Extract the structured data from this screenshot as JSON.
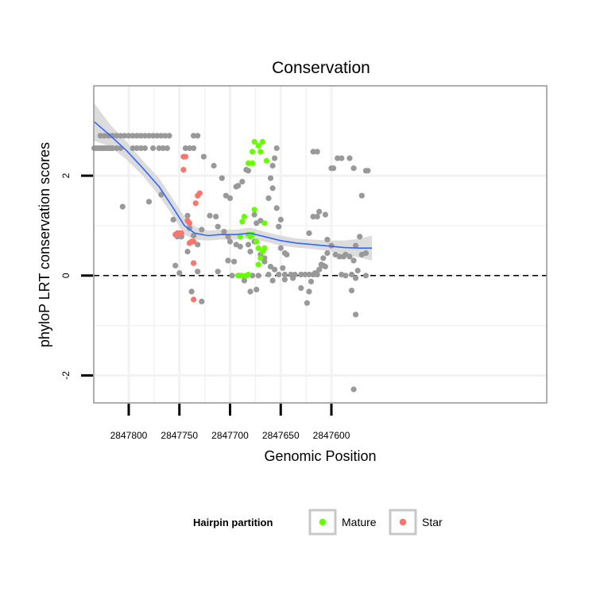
{
  "chart_data": {
    "type": "scatter",
    "title": "Conservation",
    "xlabel": "Genomic Position",
    "ylabel": "phyloP LRT conservation scores",
    "x_reversed": true,
    "xlim": [
      2847387.5,
      2847834.5
    ],
    "ylim": [
      -2.55,
      3.8
    ],
    "x_ticks": [
      2847600,
      2847650,
      2847700,
      2847750,
      2847800
    ],
    "x_tick_labels": [
      "2847600",
      "2847650",
      "2847700",
      "2847750",
      "2847800"
    ],
    "y_ticks": [
      -2,
      0,
      2
    ],
    "y_tick_labels": [
      "-2",
      "0",
      "2"
    ],
    "reference_line": {
      "y": 0,
      "style": "dashed"
    },
    "colors": {
      "background": "#ffffff",
      "panel_border": "#8c8c8c",
      "grid": "#f2f2f2",
      "other": "#999999",
      "mature": "#66ff00",
      "star": "#f8766d",
      "smooth_line": "#3366ff",
      "smooth_band": "#d6d6d6"
    },
    "legend": {
      "title": "Hairpin partition",
      "position": "bottom",
      "entries": [
        {
          "label": "Mature",
          "color": "#66ff00"
        },
        {
          "label": "Star",
          "color": "#f8766d"
        }
      ]
    },
    "series": [
      {
        "name": "Other",
        "color": "#999999",
        "points": [
          [
            2847834,
            2.55
          ],
          [
            2847832,
            2.55
          ],
          [
            2847830,
            2.55
          ],
          [
            2847828,
            2.55
          ],
          [
            2847826,
            2.55
          ],
          [
            2847824,
            2.55
          ],
          [
            2847822,
            2.55
          ],
          [
            2847820,
            2.55
          ],
          [
            2847818,
            2.55
          ],
          [
            2847816,
            2.55
          ],
          [
            2847812,
            2.55
          ],
          [
            2847808,
            2.55
          ],
          [
            2847796,
            2.55
          ],
          [
            2847792,
            2.55
          ],
          [
            2847788,
            2.55
          ],
          [
            2847784,
            2.55
          ],
          [
            2847776,
            2.55
          ],
          [
            2847770,
            2.55
          ],
          [
            2847766,
            2.55
          ],
          [
            2847762,
            2.55
          ],
          [
            2847744,
            2.55
          ],
          [
            2847740,
            2.55
          ],
          [
            2847828,
            2.8
          ],
          [
            2847824,
            2.8
          ],
          [
            2847820,
            2.8
          ],
          [
            2847816,
            2.8
          ],
          [
            2847812,
            2.8
          ],
          [
            2847808,
            2.8
          ],
          [
            2847804,
            2.8
          ],
          [
            2847800,
            2.8
          ],
          [
            2847796,
            2.8
          ],
          [
            2847792,
            2.8
          ],
          [
            2847788,
            2.8
          ],
          [
            2847784,
            2.8
          ],
          [
            2847780,
            2.8
          ],
          [
            2847776,
            2.8
          ],
          [
            2847772,
            2.8
          ],
          [
            2847768,
            2.8
          ],
          [
            2847764,
            2.8
          ],
          [
            2847760,
            2.8
          ],
          [
            2847736,
            2.8
          ],
          [
            2847732,
            2.8
          ],
          [
            2847806,
            1.38
          ],
          [
            2847780,
            1.48
          ],
          [
            2847768,
            1.62
          ],
          [
            2847742,
            1.2
          ],
          [
            2847756,
            1.12
          ],
          [
            2847740,
            0.95
          ],
          [
            2847728,
            0.92
          ],
          [
            2847736,
            0.8
          ],
          [
            2847748,
            0.78
          ],
          [
            2847752,
            0.78
          ],
          [
            2847732,
            0.62
          ],
          [
            2847742,
            0.48
          ],
          [
            2847754,
            0.2
          ],
          [
            2847750,
            0.05
          ],
          [
            2847732,
            0.08
          ],
          [
            2847738,
            -0.32
          ],
          [
            2847728,
            -0.52
          ],
          [
            2847736,
            2.55
          ],
          [
            2847726,
            2.38
          ],
          [
            2847716,
            2.2
          ],
          [
            2847708,
            1.95
          ],
          [
            2847704,
            1.6
          ],
          [
            2847700,
            1.55
          ],
          [
            2847720,
            1.2
          ],
          [
            2847714,
            1.18
          ],
          [
            2847712,
            0.98
          ],
          [
            2847706,
            0.88
          ],
          [
            2847702,
            0.78
          ],
          [
            2847700,
            0.68
          ],
          [
            2847694,
            0.62
          ],
          [
            2847690,
            0.58
          ],
          [
            2847682,
            0.62
          ],
          [
            2847680,
            0.48
          ],
          [
            2847676,
            0.68
          ],
          [
            2847670,
            0.42
          ],
          [
            2847666,
            0.28
          ],
          [
            2847660,
            0.18
          ],
          [
            2847712,
            0.08
          ],
          [
            2847698,
            0.0
          ],
          [
            2847692,
            0.0
          ],
          [
            2847684,
            0.0
          ],
          [
            2847678,
            0.0
          ],
          [
            2847672,
            0.0
          ],
          [
            2847702,
            0.3
          ],
          [
            2847696,
            0.28
          ],
          [
            2847686,
            -0.1
          ],
          [
            2847680,
            -0.32
          ],
          [
            2847674,
            -0.28
          ],
          [
            2847694,
            1.78
          ],
          [
            2847692,
            1.8
          ],
          [
            2847688,
            1.88
          ],
          [
            2847684,
            2.12
          ],
          [
            2847682,
            2.1
          ],
          [
            2847676,
            1.22
          ],
          [
            2847674,
            1.05
          ],
          [
            2847670,
            1.1
          ],
          [
            2847666,
            0.35
          ],
          [
            2847662,
            0.02
          ],
          [
            2847654,
            2.55
          ],
          [
            2847656,
            2.35
          ],
          [
            2847658,
            2.2
          ],
          [
            2847660,
            1.95
          ],
          [
            2847658,
            1.75
          ],
          [
            2847662,
            1.55
          ],
          [
            2847654,
            1.35
          ],
          [
            2847650,
            1.12
          ],
          [
            2847652,
            0.98
          ],
          [
            2847646,
            0.45
          ],
          [
            2847650,
            0.55
          ],
          [
            2847644,
            0.42
          ],
          [
            2847648,
            0.15
          ],
          [
            2847656,
            0.12
          ],
          [
            2847652,
            0.02
          ],
          [
            2847646,
            0.02
          ],
          [
            2847640,
            0.02
          ],
          [
            2847636,
            0.02
          ],
          [
            2847630,
            0.02
          ],
          [
            2847626,
            0.02
          ],
          [
            2847622,
            0.02
          ],
          [
            2847618,
            0.02
          ],
          [
            2847614,
            0.02
          ],
          [
            2847658,
            -0.1
          ],
          [
            2847646,
            -0.08
          ],
          [
            2847638,
            -0.05
          ],
          [
            2847630,
            -0.25
          ],
          [
            2847624,
            -0.55
          ],
          [
            2847622,
            -0.32
          ],
          [
            2847620,
            -0.12
          ],
          [
            2847616,
            0.05
          ],
          [
            2847612,
            0.12
          ],
          [
            2847610,
            0.22
          ],
          [
            2847608,
            0.2
          ],
          [
            2847622,
            0.85
          ],
          [
            2847618,
            1.18
          ],
          [
            2847614,
            1.18
          ],
          [
            2847606,
            1.22
          ],
          [
            2847612,
            1.28
          ],
          [
            2847618,
            2.48
          ],
          [
            2847614,
            2.48
          ],
          [
            2847600,
            2.15
          ],
          [
            2847598,
            2.15
          ],
          [
            2847594,
            2.35
          ],
          [
            2847590,
            2.35
          ],
          [
            2847582,
            2.35
          ],
          [
            2847604,
            0.72
          ],
          [
            2847600,
            0.6
          ],
          [
            2847596,
            0.42
          ],
          [
            2847592,
            0.38
          ],
          [
            2847588,
            0.38
          ],
          [
            2847586,
            0.42
          ],
          [
            2847582,
            0.38
          ],
          [
            2847578,
            0.3
          ],
          [
            2847574,
            0.1
          ],
          [
            2847604,
            0.45
          ],
          [
            2847608,
            0.35
          ],
          [
            2847606,
            0.18
          ],
          [
            2847580,
            0.02
          ],
          [
            2847576,
            -0.05
          ],
          [
            2847580,
            -0.3
          ],
          [
            2847572,
            0.78
          ],
          [
            2847576,
            0.6
          ],
          [
            2847570,
            0.42
          ],
          [
            2847566,
            0.45
          ],
          [
            2847578,
            2.15
          ],
          [
            2847566,
            2.1
          ],
          [
            2847564,
            2.1
          ],
          [
            2847570,
            1.6
          ],
          [
            2847566,
            0.0
          ],
          [
            2847576,
            -0.78
          ],
          [
            2847578,
            -2.28
          ],
          [
            2847590,
            0.02
          ],
          [
            2847586,
            0.0
          ]
        ]
      },
      {
        "name": "Mature",
        "color": "#66ff00",
        "points": [
          [
            2847692,
            0.0
          ],
          [
            2847690,
            0.0
          ],
          [
            2847688,
            0.0
          ],
          [
            2847684,
            0.0
          ],
          [
            2847682,
            0.02
          ],
          [
            2847688,
            1.08
          ],
          [
            2847686,
            1.18
          ],
          [
            2847682,
            2.25
          ],
          [
            2847682,
            0.82
          ],
          [
            2847680,
            0.78
          ],
          [
            2847678,
            2.48
          ],
          [
            2847678,
            2.25
          ],
          [
            2847676,
            2.68
          ],
          [
            2847676,
            1.32
          ],
          [
            2847678,
            0.82
          ],
          [
            2847674,
            0.68
          ],
          [
            2847672,
            0.55
          ],
          [
            2847672,
            0.22
          ],
          [
            2847672,
            2.6
          ],
          [
            2847670,
            2.48
          ],
          [
            2847670,
            0.35
          ],
          [
            2847668,
            2.68
          ],
          [
            2847668,
            0.48
          ],
          [
            2847666,
            0.55
          ],
          [
            2847664,
            2.3
          ],
          [
            2847666,
            1.05
          ],
          [
            2847690,
            0.78
          ]
        ]
      },
      {
        "name": "Star",
        "color": "#f8766d",
        "points": [
          [
            2847754,
            0.82
          ],
          [
            2847752,
            0.85
          ],
          [
            2847750,
            0.85
          ],
          [
            2847748,
            0.85
          ],
          [
            2847746,
            2.38
          ],
          [
            2847744,
            2.38
          ],
          [
            2847746,
            2.12
          ],
          [
            2847742,
            1.1
          ],
          [
            2847740,
            1.05
          ],
          [
            2847740,
            0.65
          ],
          [
            2847738,
            0.68
          ],
          [
            2847736,
            0.68
          ],
          [
            2847736,
            0.25
          ],
          [
            2847736,
            -0.48
          ],
          [
            2847734,
            1.45
          ],
          [
            2847732,
            1.6
          ],
          [
            2847730,
            1.65
          ]
        ]
      }
    ],
    "smooth": {
      "method": "loess",
      "x": [
        2847834,
        2847818,
        2847802,
        2847786,
        2847770,
        2847756,
        2847745,
        2847735,
        2847722,
        2847710,
        2847695,
        2847680,
        2847666,
        2847650,
        2847634,
        2847618,
        2847602,
        2847587,
        2847572,
        2847560
      ],
      "y": [
        3.08,
        2.8,
        2.5,
        2.15,
        1.78,
        1.35,
        1.0,
        0.85,
        0.8,
        0.82,
        0.82,
        0.85,
        0.78,
        0.7,
        0.65,
        0.62,
        0.59,
        0.56,
        0.55,
        0.55
      ],
      "lower": [
        2.7,
        2.58,
        2.32,
        2.0,
        1.6,
        1.18,
        0.82,
        0.72,
        0.7,
        0.72,
        0.72,
        0.74,
        0.68,
        0.6,
        0.56,
        0.53,
        0.49,
        0.42,
        0.36,
        0.3
      ],
      "upper": [
        3.45,
        3.02,
        2.68,
        2.3,
        1.95,
        1.52,
        1.18,
        0.98,
        0.9,
        0.92,
        0.92,
        0.96,
        0.88,
        0.8,
        0.74,
        0.72,
        0.7,
        0.7,
        0.74,
        0.8
      ]
    }
  }
}
